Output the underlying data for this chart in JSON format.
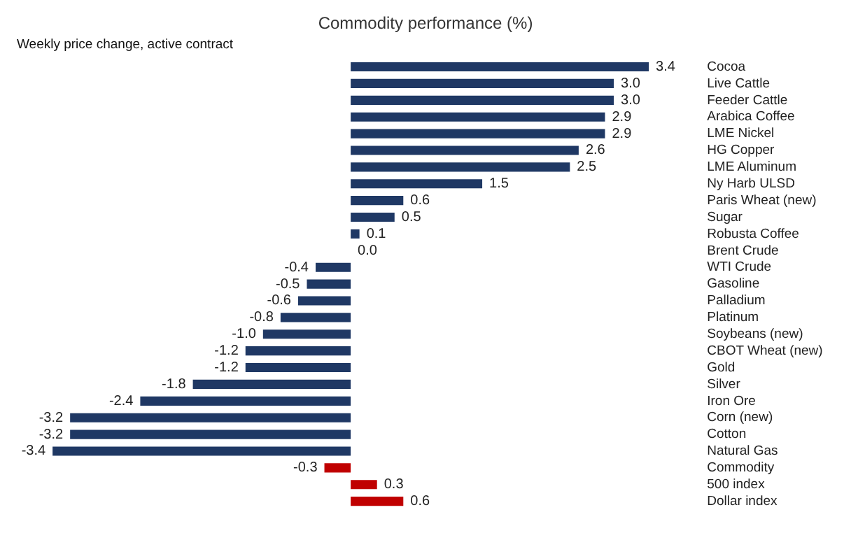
{
  "chart_data": {
    "type": "bar",
    "orientation": "horizontal",
    "title": "Commodity performance (%)",
    "subtitle": "Weekly price change, active contract",
    "categories": [
      "Cocoa",
      "Live Cattle",
      "Feeder Cattle",
      "Arabica Coffee",
      "LME Nickel",
      "HG Copper",
      "LME Aluminum",
      "Ny Harb ULSD",
      "Paris Wheat (new)",
      "Sugar",
      "Robusta Coffee",
      "Brent Crude",
      "WTI Crude",
      "Gasoline",
      "Palladium",
      "Platinum",
      "Soybeans (new)",
      "CBOT Wheat (new)",
      "Gold",
      "Silver",
      "Iron Ore",
      "Corn (new)",
      "Cotton",
      "Natural Gas",
      "Commodity",
      "500 index",
      "Dollar index"
    ],
    "values": [
      3.4,
      3.0,
      3.0,
      2.9,
      2.9,
      2.6,
      2.5,
      1.5,
      0.6,
      0.5,
      0.1,
      0.0,
      -0.4,
      -0.5,
      -0.6,
      -0.8,
      -1.0,
      -1.2,
      -1.2,
      -1.8,
      -2.4,
      -3.2,
      -3.2,
      -3.4,
      -0.3,
      0.3,
      0.6
    ],
    "colors": [
      "#1f3864",
      "#1f3864",
      "#1f3864",
      "#1f3864",
      "#1f3864",
      "#1f3864",
      "#1f3864",
      "#1f3864",
      "#1f3864",
      "#1f3864",
      "#1f3864",
      "#1f3864",
      "#1f3864",
      "#1f3864",
      "#1f3864",
      "#1f3864",
      "#1f3864",
      "#1f3864",
      "#1f3864",
      "#1f3864",
      "#1f3864",
      "#1f3864",
      "#1f3864",
      "#1f3864",
      "#c00000",
      "#c00000",
      "#c00000"
    ],
    "value_labels": [
      "3.4",
      "3.0",
      "3.0",
      "2.9",
      "2.9",
      "2.6",
      "2.5",
      "1.5",
      "0.6",
      "0.5",
      "0.1",
      "0.0",
      "-0.4",
      "-0.5",
      "-0.6",
      "-0.8",
      "-1.0",
      "-1.2",
      "-1.2",
      "-1.8",
      "-2.4",
      "-3.2",
      "-3.2",
      "-3.4",
      "-0.3",
      "0.3",
      "0.6"
    ]
  }
}
